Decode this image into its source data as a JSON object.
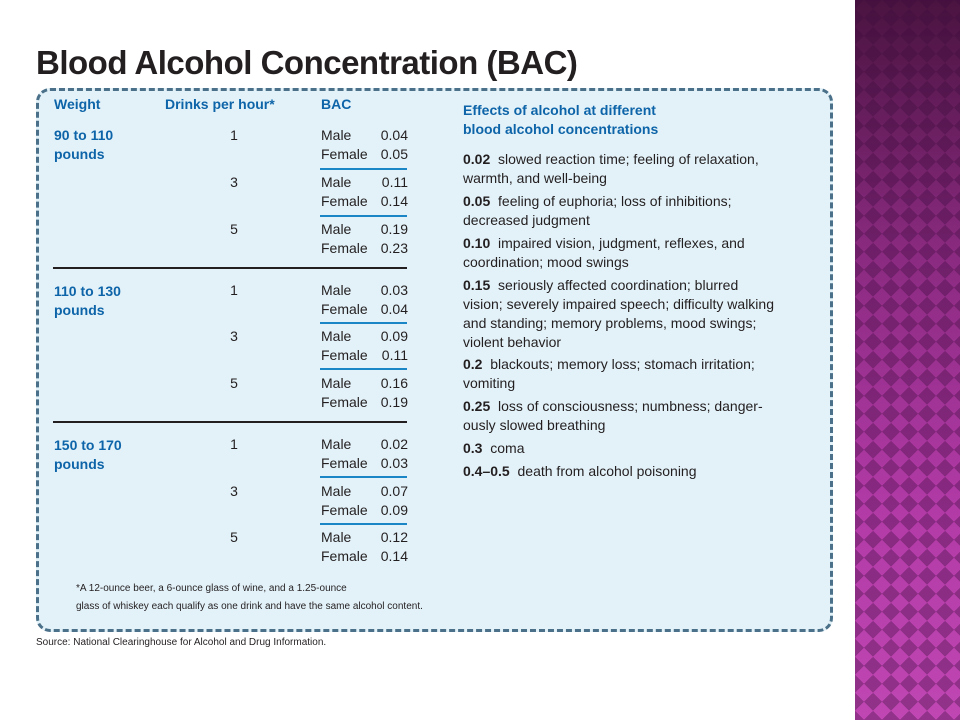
{
  "slide": {
    "title": "Blood Alcohol Concentration (BAC)",
    "accent_color": "#0d64a8",
    "panel_color": "#e3f2f9",
    "band_color": "#8e2b86"
  },
  "table": {
    "headers": {
      "weight": "Weight",
      "drinks": "Drinks per hour*",
      "bac": "BAC"
    },
    "groups": [
      {
        "weight_line1": "90 to 110",
        "weight_line2": "pounds",
        "rows": [
          {
            "drinks": "1",
            "male": "0.04",
            "female": "0.05"
          },
          {
            "drinks": "3",
            "male": "0.11",
            "female": "0.14"
          },
          {
            "drinks": "5",
            "male": "0.19",
            "female": "0.23"
          }
        ]
      },
      {
        "weight_line1": "110 to 130",
        "weight_line2": "pounds",
        "rows": [
          {
            "drinks": "1",
            "male": "0.03",
            "female": "0.04"
          },
          {
            "drinks": "3",
            "male": "0.09",
            "female": "0.11"
          },
          {
            "drinks": "5",
            "male": "0.16",
            "female": "0.19"
          }
        ]
      },
      {
        "weight_line1": "150 to 170",
        "weight_line2": "pounds",
        "rows": [
          {
            "drinks": "1",
            "male": "0.02",
            "female": "0.03"
          },
          {
            "drinks": "3",
            "male": "0.07",
            "female": "0.09"
          },
          {
            "drinks": "5",
            "male": "0.12",
            "female": "0.14"
          }
        ]
      }
    ],
    "male_label": "Male",
    "female_label": "Female"
  },
  "effects": {
    "title_line1": "Effects of alcohol at different",
    "title_line2": "blood alcohol concentrations",
    "items": [
      {
        "level": "0.02",
        "line1": "slowed reaction time; feeling of relaxation,",
        "line2": "warmth, and well-being"
      },
      {
        "level": "0.05",
        "line1": "feeling of euphoria; loss of inhibitions;",
        "line2": "decreased judgment"
      },
      {
        "level": "0.10",
        "line1": "impaired vision, judgment, reflexes, and",
        "line2": "coordination; mood swings"
      },
      {
        "level": "0.15",
        "line1": "seriously affected coordination; blurred",
        "line2": "vision; severely impaired speech; difficulty walking",
        "line3": "and standing; memory problems, mood swings;",
        "line4": "violent behavior"
      },
      {
        "level": "0.2",
        "line1": "blackouts; memory loss; stomach irritation;",
        "line2": "vomiting"
      },
      {
        "level": "0.25",
        "line1": "loss of consciousness; numbness; danger-",
        "line2": "ously slowed breathing"
      },
      {
        "level": "0.3",
        "line1": "coma"
      },
      {
        "level": "0.4–0.5",
        "line1": "death from alcohol poisoning"
      }
    ]
  },
  "footnote": {
    "line1": "*A 12-ounce beer, a 6-ounce glass of wine, and a 1.25-ounce",
    "line2": "glass of whiskey each qualify as one drink and have the same alcohol content."
  },
  "source": "Source: National Clearinghouse for Alcohol and Drug Information."
}
